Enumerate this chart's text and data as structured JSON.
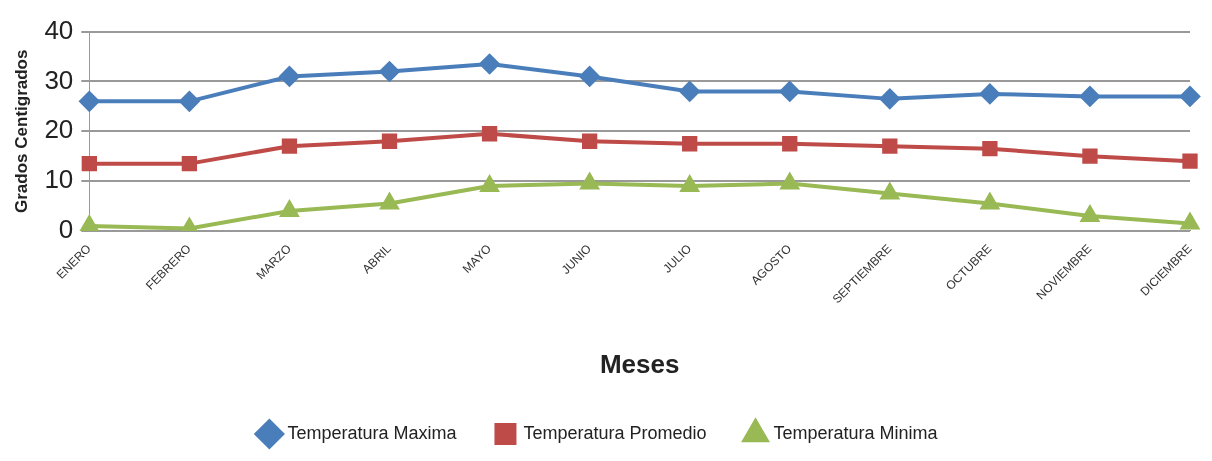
{
  "chart_data": {
    "type": "line",
    "xlabel": "Meses",
    "ylabel": "Grados Centigrados",
    "categories": [
      "ENERO",
      "FEBRERO",
      "MARZO",
      "ABRIL",
      "MAYO",
      "JUNIO",
      "JULIO",
      "AGOSTO",
      "SEPTIEMBRE",
      "OCTUBRE",
      "NOVIEMBRE",
      "DICIEMBRE"
    ],
    "series": [
      {
        "name": "Temperatura Maxima",
        "color": "#4a7ebb",
        "marker": "diamond",
        "values": [
          26,
          26,
          31,
          32,
          33.5,
          31,
          28,
          28,
          26.5,
          27.5,
          27,
          27
        ]
      },
      {
        "name": "Temperatura Promedio",
        "color": "#be4b48",
        "marker": "square",
        "values": [
          13.5,
          13.5,
          17,
          18,
          19.5,
          18,
          17.5,
          17.5,
          17,
          16.5,
          15,
          14
        ]
      },
      {
        "name": "Temperatura Minima",
        "color": "#98b954",
        "marker": "triangle",
        "values": [
          1,
          0.5,
          4,
          5.5,
          9,
          9.5,
          9,
          9.5,
          7.5,
          5.5,
          3,
          1.5
        ]
      }
    ],
    "ylim": [
      0,
      40
    ],
    "yticks": [
      0,
      10,
      20,
      30,
      40
    ],
    "grid": "y",
    "legend": "bottom",
    "line_style": "solid"
  }
}
